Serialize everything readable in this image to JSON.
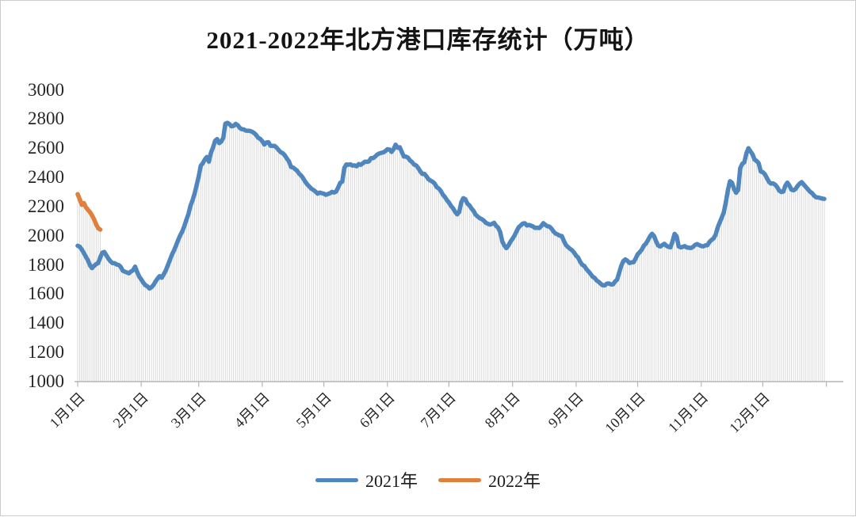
{
  "chart_data": {
    "type": "line",
    "title": "2021-2022年北方港口库存统计（万吨）",
    "x_unit": "day of year (0 = 1月1日)",
    "ylim": [
      1000,
      3000
    ],
    "y_step": 200,
    "grid": false,
    "legend_position": "bottom-center",
    "y_tick_labels": [
      "3000",
      "2800",
      "2600",
      "2400",
      "2200",
      "2000",
      "1800",
      "1600",
      "1400",
      "1200",
      "1000"
    ],
    "x_tick_labels": [
      "1月1日",
      "2月1日",
      "3月1日",
      "4月1日",
      "5月1日",
      "6月1日",
      "7月1日",
      "8月1日",
      "9月1日",
      "10月1日",
      "11月1日",
      "12月1日"
    ],
    "x_tick_days": [
      0,
      31,
      59,
      90,
      120,
      151,
      181,
      212,
      243,
      273,
      304,
      334,
      365
    ],
    "style": {
      "drop_lines": true,
      "drop_line_color": "#d9d9d9",
      "axis_color": "#b5b5b5",
      "line_width": 5.5,
      "background": "#ffffff",
      "border": "#cccccc",
      "title_color": "#141414"
    },
    "series": [
      {
        "key": "2021",
        "name": "2021年",
        "color": "#4e86bd",
        "values": [
          1935,
          1922,
          1905,
          1882,
          1858,
          1828,
          1795,
          1778,
          1793,
          1805,
          1818,
          1850,
          1882,
          1890,
          1862,
          1845,
          1826,
          1815,
          1806,
          1800,
          1795,
          1782,
          1766,
          1752,
          1743,
          1746,
          1752,
          1768,
          1783,
          1755,
          1722,
          1700,
          1680,
          1663,
          1652,
          1643,
          1646,
          1658,
          1690,
          1710,
          1720,
          1708,
          1735,
          1768,
          1800,
          1832,
          1868,
          1905,
          1935,
          1965,
          1998,
          2030,
          2068,
          2110,
          2155,
          2200,
          2245,
          2290,
          2345,
          2405,
          2480,
          2500,
          2518,
          2535,
          2512,
          2568,
          2610,
          2645,
          2662,
          2636,
          2645,
          2672,
          2768,
          2780,
          2762,
          2752,
          2756,
          2763,
          2752,
          2742,
          2735,
          2728,
          2722,
          2718,
          2715,
          2712,
          2703,
          2695,
          2672,
          2663,
          2652,
          2628,
          2634,
          2640,
          2615,
          2612,
          2618,
          2600,
          2588,
          2575,
          2565,
          2556,
          2530,
          2505,
          2475,
          2463,
          2455,
          2442,
          2430,
          2410,
          2387,
          2368,
          2350,
          2335,
          2320,
          2308,
          2297,
          2294,
          2292,
          2287,
          2290,
          2285,
          2280,
          2290,
          2298,
          2295,
          2300,
          2330,
          2365,
          2375,
          2470,
          2490,
          2482,
          2491,
          2483,
          2488,
          2482,
          2491,
          2486,
          2498,
          2509,
          2512,
          2515,
          2526,
          2537,
          2546,
          2555,
          2564,
          2570,
          2576,
          2582,
          2588,
          2592,
          2578,
          2598,
          2618,
          2605,
          2610,
          2575,
          2548,
          2542,
          2537,
          2520,
          2502,
          2492,
          2482,
          2460,
          2437,
          2428,
          2419,
          2405,
          2392,
          2382,
          2372,
          2355,
          2338,
          2320,
          2302,
          2284,
          2266,
          2248,
          2230,
          2208,
          2185,
          2162,
          2150,
          2160,
          2230,
          2256,
          2248,
          2226,
          2205,
          2185,
          2165,
          2140,
          2128,
          2118,
          2110,
          2103,
          2090,
          2080,
          2076,
          2076,
          2086,
          2072,
          2058,
          2020,
          1960,
          1928,
          1920,
          1938,
          1965,
          1985,
          2005,
          2030,
          2058,
          2072,
          2085,
          2080,
          2075,
          2070,
          2066,
          2058,
          2050,
          2051,
          2052,
          2068,
          2086,
          2074,
          2062,
          2066,
          2048,
          2030,
          2018,
          2005,
          2000,
          1995,
          1968,
          1940,
          1922,
          1905,
          1896,
          1882,
          1868,
          1844,
          1820,
          1805,
          1790,
          1775,
          1760,
          1742,
          1725,
          1711,
          1697,
          1684,
          1672,
          1666,
          1661,
          1666,
          1672,
          1670,
          1668,
          1684,
          1700,
          1750,
          1790,
          1825,
          1840,
          1828,
          1815,
          1818,
          1822,
          1848,
          1875,
          1890,
          1905,
          1928,
          1950,
          1975,
          1995,
          2012,
          1992,
          1962,
          1938,
          1925,
          1932,
          1940,
          1930,
          1926,
          1923,
          1960,
          2008,
          1995,
          1930,
          1923,
          1925,
          1928,
          1922,
          1915,
          1919,
          1923,
          1932,
          1940,
          1935,
          1930,
          1923,
          1932,
          1940,
          1952,
          1966,
          1980,
          2012,
          2060,
          2095,
          2122,
          2155,
          2225,
          2315,
          2370,
          2358,
          2325,
          2295,
          2315,
          2468,
          2495,
          2505,
          2568,
          2595,
          2575,
          2552,
          2525,
          2510,
          2498,
          2445,
          2432,
          2420,
          2400,
          2374,
          2358,
          2364,
          2348,
          2330,
          2312,
          2295,
          2305,
          2348,
          2358,
          2347,
          2320,
          2309,
          2320,
          2340,
          2358,
          2364,
          2347,
          2336,
          2320,
          2306,
          2293,
          2277,
          2266,
          2260,
          2255,
          2254,
          2258
        ]
      },
      {
        "key": "2022",
        "name": "2022年",
        "color": "#e0803d",
        "values": [
          2285,
          2250,
          2212,
          2224,
          2195,
          2178,
          2162,
          2140,
          2112,
          2078,
          2052,
          2042
        ]
      }
    ]
  }
}
